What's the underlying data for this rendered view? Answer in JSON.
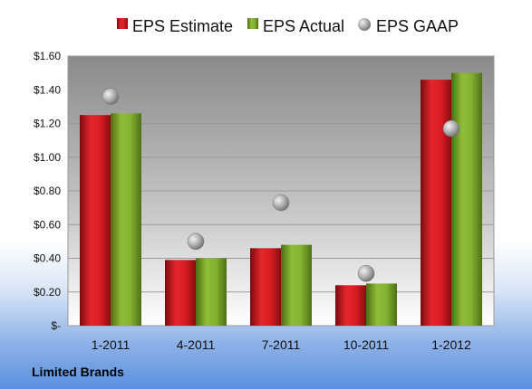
{
  "chart_data": {
    "type": "bar",
    "title": "",
    "xlabel": "",
    "ylabel": "",
    "ylim": [
      0,
      1.6
    ],
    "yticks": [
      0,
      0.2,
      0.4,
      0.6,
      0.8,
      1.0,
      1.2,
      1.4,
      1.6
    ],
    "ytick_labels": [
      "$-",
      "$0.20",
      "$0.40",
      "$0.60",
      "$0.80",
      "$1.00",
      "$1.20",
      "$1.40",
      "$1.60"
    ],
    "categories": [
      "1-2011",
      "4-2011",
      "7-2011",
      "10-2011",
      "1-2012"
    ],
    "series": [
      {
        "name": "EPS Estimate",
        "kind": "bar",
        "color": "#c8161d",
        "values": [
          1.25,
          0.39,
          0.46,
          0.24,
          1.46
        ]
      },
      {
        "name": "EPS Actual",
        "kind": "bar",
        "color": "#6f9a27",
        "values": [
          1.26,
          0.4,
          0.48,
          0.25,
          1.5
        ]
      },
      {
        "name": "EPS GAAP",
        "kind": "marker",
        "color": "#a9a9a9",
        "values": [
          1.36,
          0.5,
          0.73,
          0.31,
          1.17
        ]
      }
    ],
    "grid": true,
    "legend_position": "top",
    "company": "Limited Brands"
  }
}
